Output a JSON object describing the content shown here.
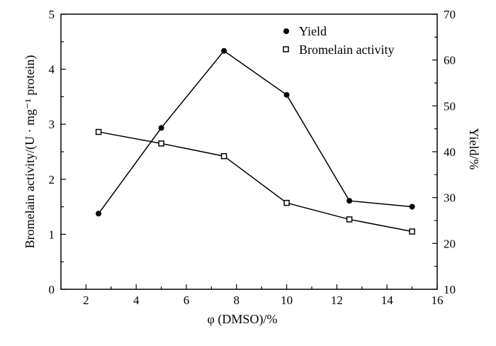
{
  "chart_data": {
    "type": "line",
    "xlabel": "φ (DMSO)/%",
    "ylabel_left": "Bromelain activity/(U · mg⁻¹ protein)",
    "ylabel_right": "Yield/%",
    "xlim": [
      1,
      16
    ],
    "ylim_left": [
      0,
      5
    ],
    "ylim_right": [
      10,
      70
    ],
    "x_ticks": [
      2,
      4,
      6,
      8,
      10,
      12,
      14,
      16
    ],
    "y_left_ticks": [
      0,
      1,
      2,
      3,
      4,
      5
    ],
    "y_right_ticks": [
      10,
      20,
      30,
      40,
      50,
      60,
      70
    ],
    "grid": false,
    "legend_position": "top-right",
    "series": [
      {
        "name": "Yield",
        "axis": "right",
        "marker": "filled-circle",
        "x": [
          2.5,
          5,
          7.5,
          10,
          12.5,
          15
        ],
        "y": [
          26.5,
          45.2,
          62.0,
          52.4,
          29.3,
          28.0
        ]
      },
      {
        "name": "Bromelain activity",
        "axis": "left",
        "marker": "open-square",
        "x": [
          2.5,
          5,
          7.5,
          10,
          12.5,
          15
        ],
        "y": [
          2.86,
          2.65,
          2.42,
          1.57,
          1.27,
          1.05
        ]
      }
    ]
  }
}
